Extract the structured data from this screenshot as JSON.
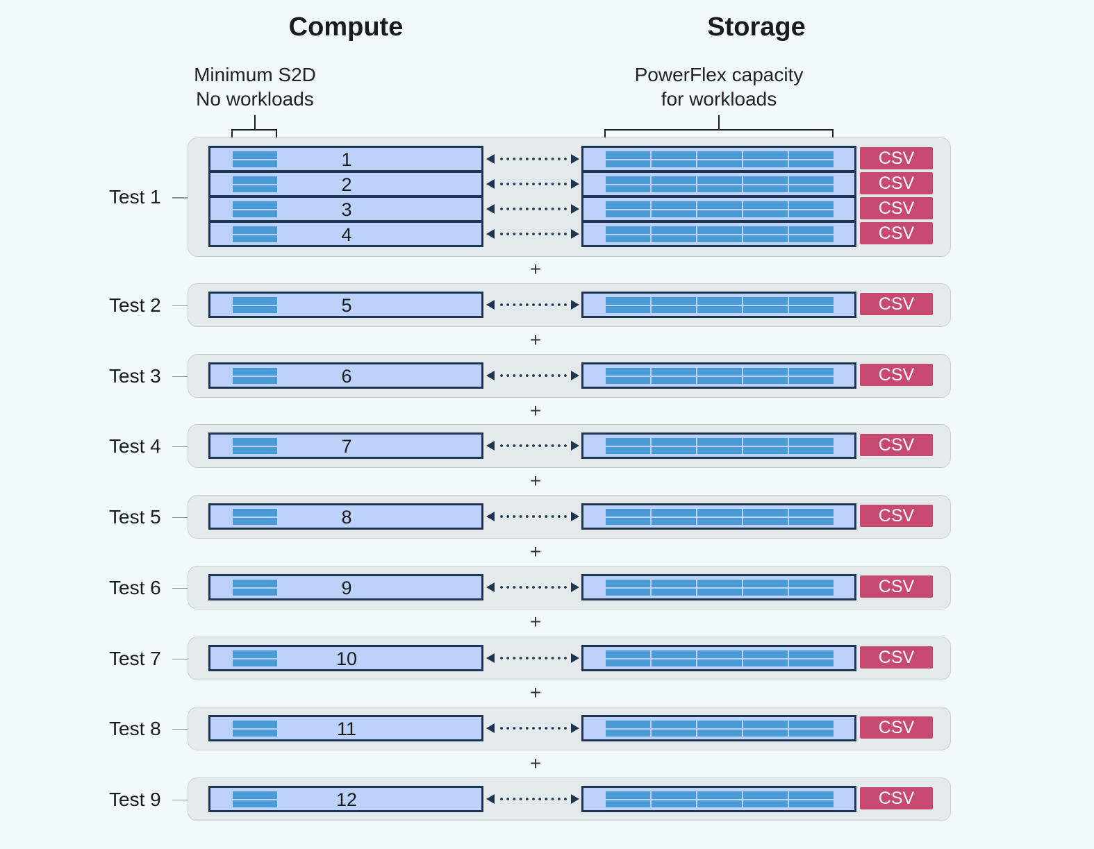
{
  "headings": {
    "compute": "Compute",
    "storage": "Storage"
  },
  "notes": {
    "compute": "Minimum S2D\nNo workloads",
    "storage": "PowerFlex capacity\nfor workloads"
  },
  "csv_label": "CSV",
  "plus_sign": "+",
  "colors": {
    "background": "#f0f9fc",
    "group_panel": "#e4e9ec",
    "volume_fill": "#bcd2fb",
    "volume_border": "#1e3552",
    "disk_block": "#4a9ad6",
    "csv_badge": "#c8496f"
  },
  "tests": [
    {
      "label": "Test 1",
      "volumes": [
        "1",
        "2",
        "3",
        "4"
      ]
    },
    {
      "label": "Test 2",
      "volumes": [
        "5"
      ]
    },
    {
      "label": "Test 3",
      "volumes": [
        "6"
      ]
    },
    {
      "label": "Test 4",
      "volumes": [
        "7"
      ]
    },
    {
      "label": "Test 5",
      "volumes": [
        "8"
      ]
    },
    {
      "label": "Test 6",
      "volumes": [
        "9"
      ]
    },
    {
      "label": "Test 7",
      "volumes": [
        "10"
      ]
    },
    {
      "label": "Test 8",
      "volumes": [
        "11"
      ]
    },
    {
      "label": "Test 9",
      "volumes": [
        "12"
      ]
    }
  ]
}
